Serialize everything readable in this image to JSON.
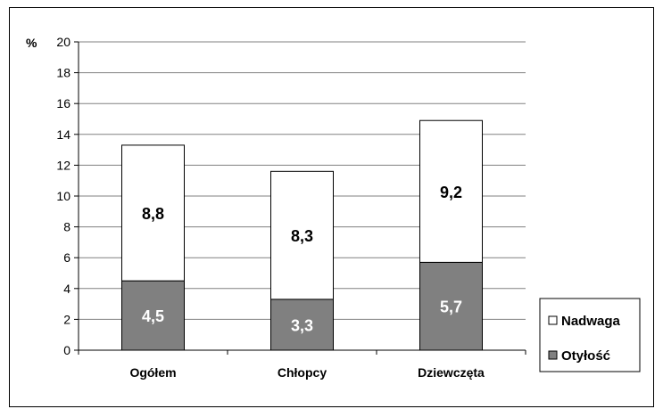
{
  "chart_data": {
    "type": "bar",
    "stacked": true,
    "categories": [
      "Ogółem",
      "Chłopcy",
      "Dziewczęta"
    ],
    "series": [
      {
        "name": "Otyłość",
        "values": [
          4.5,
          3.3,
          5.7
        ],
        "labels": [
          "4,5",
          "3,3",
          "5,7"
        ],
        "color": "#808080",
        "label_color": "#ffffff"
      },
      {
        "name": "Nadwaga",
        "values": [
          8.8,
          8.3,
          9.2
        ],
        "labels": [
          "8,8",
          "8,3",
          "9,2"
        ],
        "color": "#ffffff",
        "label_color": "#000000"
      }
    ],
    "ylabel": "%",
    "ylim": [
      0,
      20
    ],
    "yticks": [
      0,
      2,
      4,
      6,
      8,
      10,
      12,
      14,
      16,
      18,
      20
    ],
    "grid": true,
    "legend_position": "bottom-right",
    "legend": [
      "Nadwaga",
      "Otyłość"
    ]
  }
}
